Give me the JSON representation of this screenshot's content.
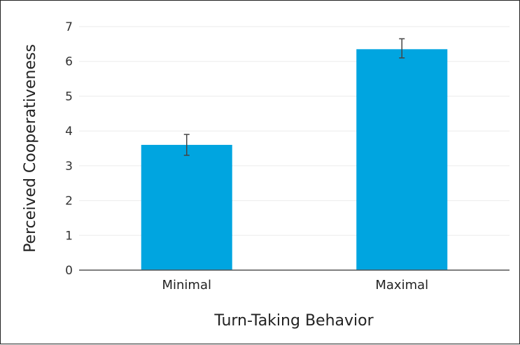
{
  "chart_data": {
    "type": "bar",
    "categories": [
      "Minimal",
      "Maximal"
    ],
    "values": [
      3.6,
      6.35
    ],
    "error_bars": [
      {
        "low": 3.3,
        "high": 3.9
      },
      {
        "low": 6.1,
        "high": 6.65
      }
    ],
    "xlabel": "Turn-Taking Behavior",
    "ylabel": "Perceived Cooperativeness",
    "ylim": [
      0,
      7
    ],
    "yticks": [
      "0",
      "1",
      "2",
      "3",
      "4",
      "5",
      "6",
      "7"
    ],
    "grid": true,
    "colors": {
      "bar": "#00a5e0",
      "grid": "#ebebeb",
      "axis": "#555555",
      "error": "#444444"
    }
  }
}
